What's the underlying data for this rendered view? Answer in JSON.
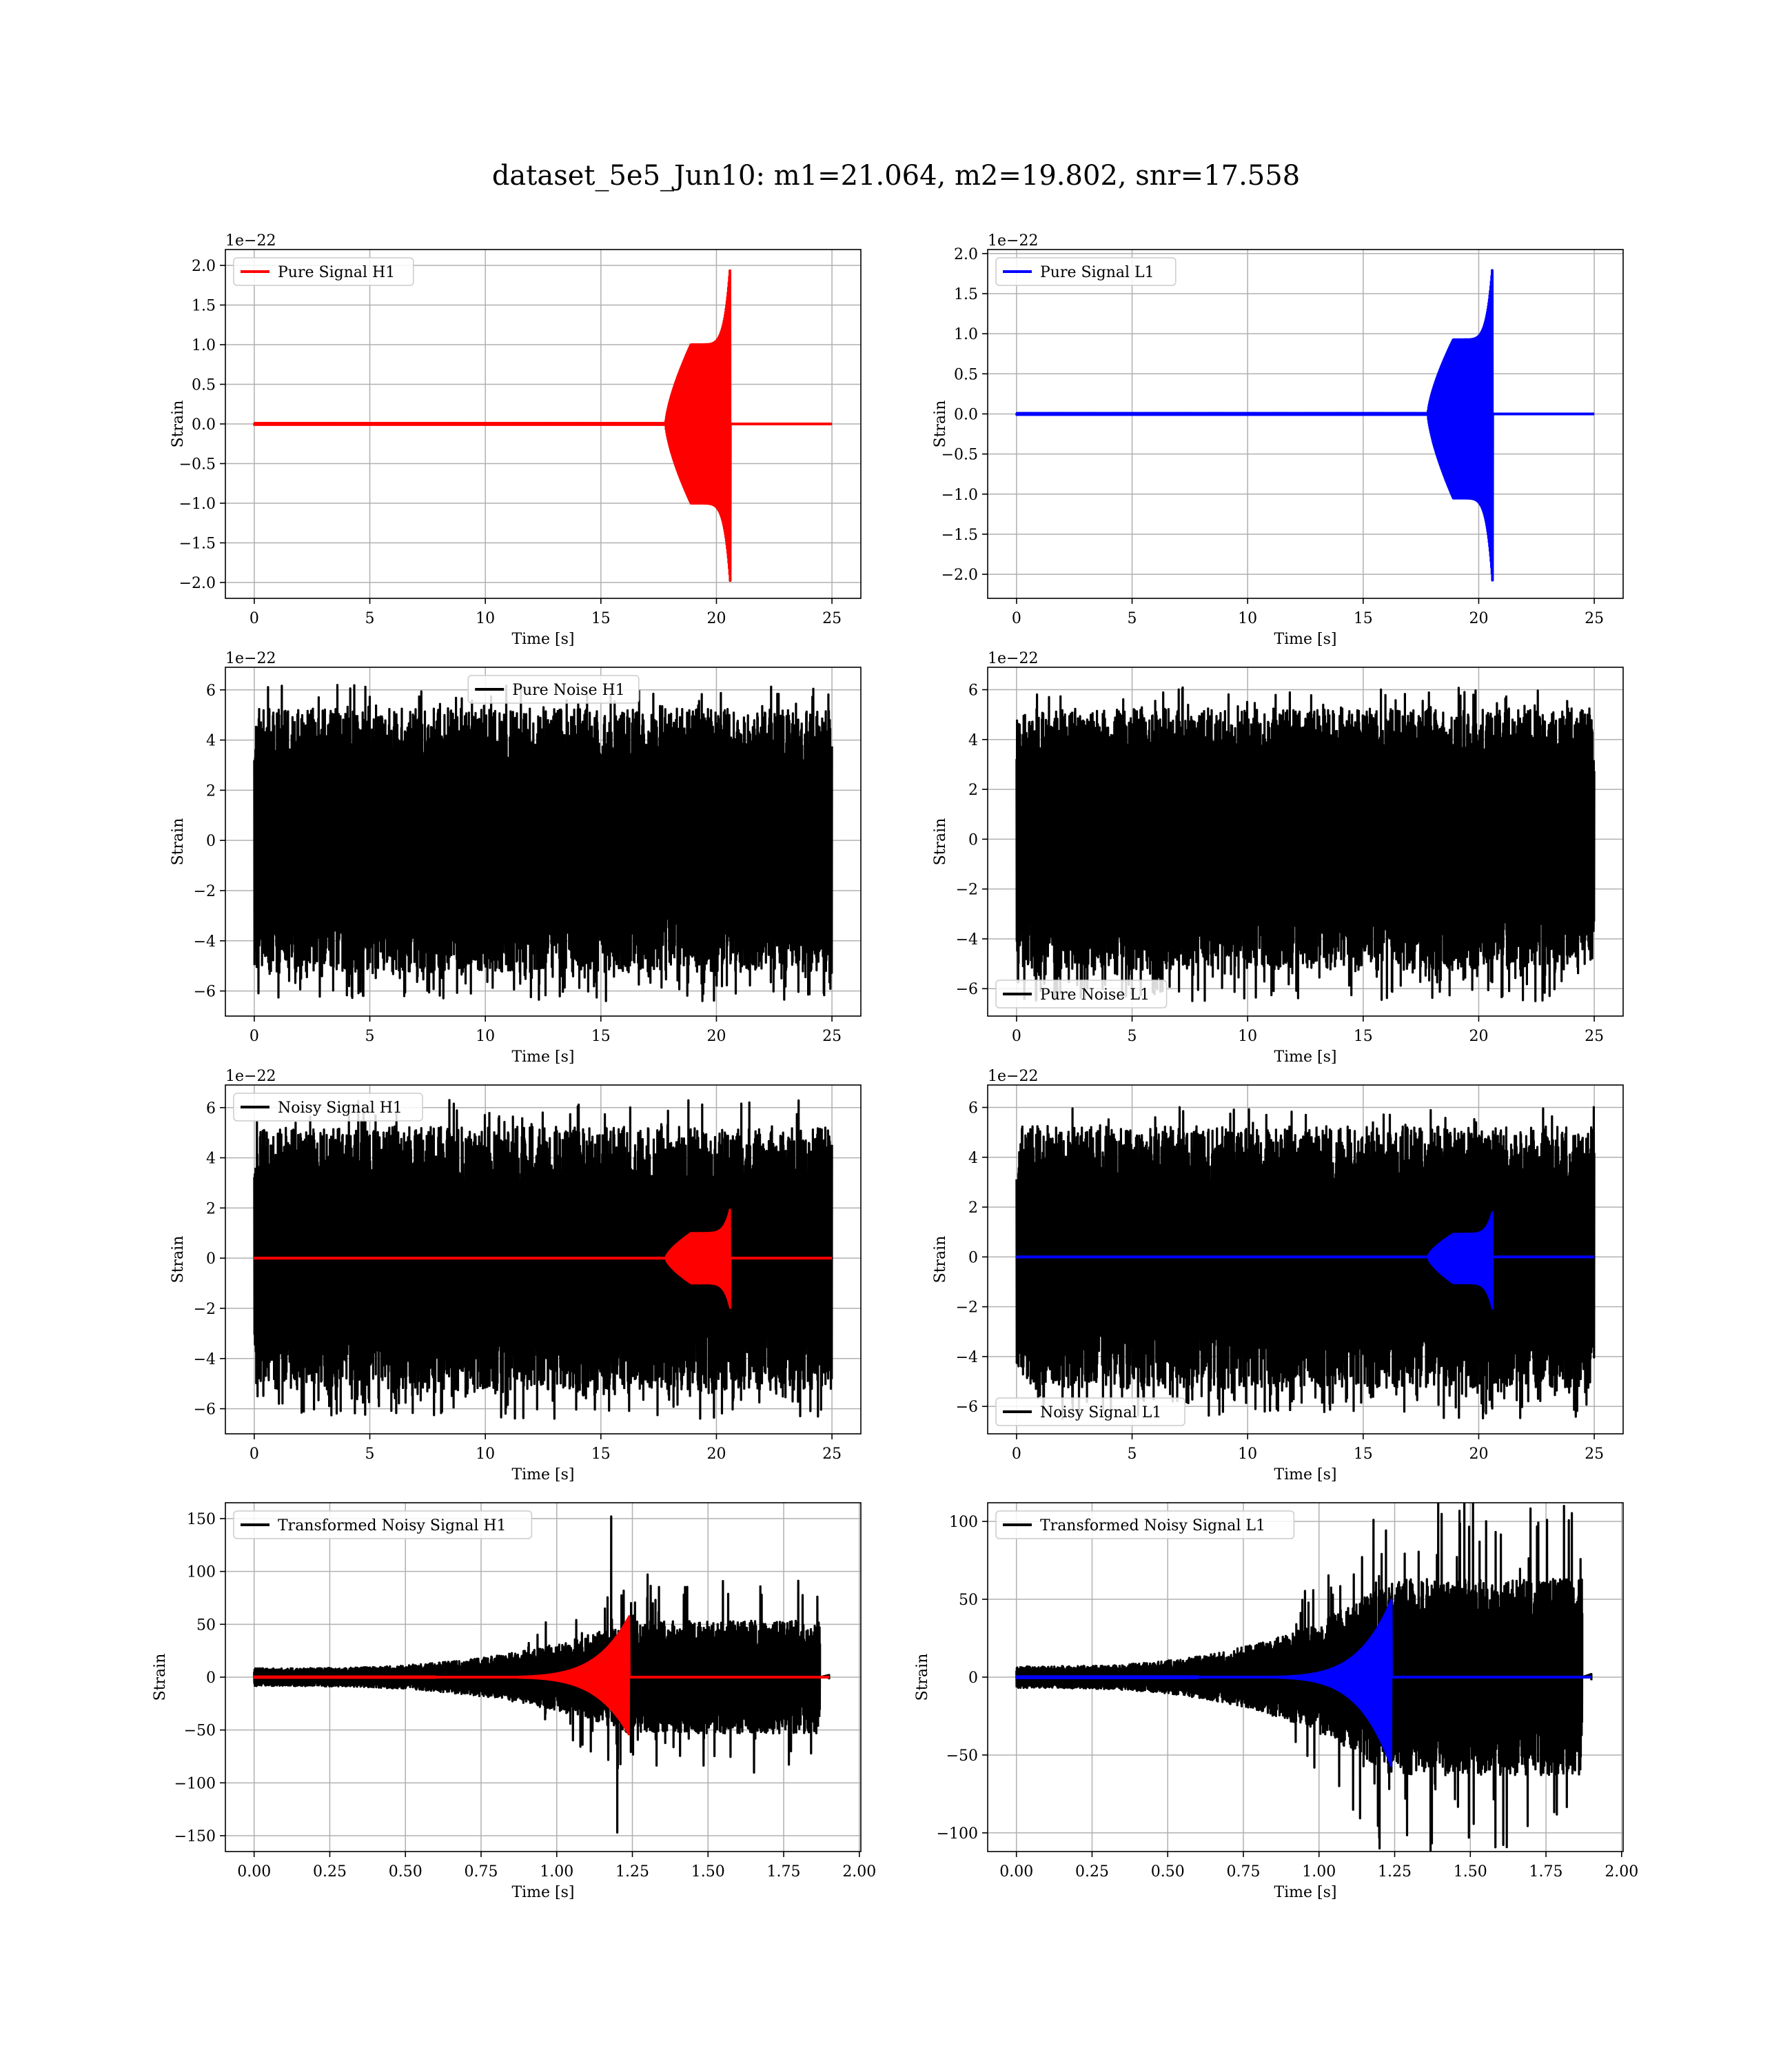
{
  "figure": {
    "suptitle": "dataset_5e5_Jun10: m1=21.064, m2=19.802, snr=17.558"
  },
  "colors": {
    "h1": "#ff0000",
    "l1": "#0000ff",
    "noise": "#000000",
    "grid": "#b0b0b0"
  },
  "chart_data": [
    {
      "type": "line",
      "title": "",
      "xlabel": "Time [s]",
      "ylabel": "Strain",
      "offset_text": "1e−22",
      "xlim": [
        -1.25,
        26.25
      ],
      "ylim": [
        -2.2,
        2.2
      ],
      "xticks": [
        0,
        5,
        10,
        15,
        20,
        25
      ],
      "xtick_labels": [
        "0",
        "5",
        "10",
        "15",
        "20",
        "25"
      ],
      "yticks": [
        -2.0,
        -1.5,
        -1.0,
        -0.5,
        0.0,
        0.5,
        1.0,
        1.5,
        2.0
      ],
      "ytick_labels": [
        "−2.0",
        "−1.5",
        "−1.0",
        "−0.5",
        "0.0",
        "0.5",
        "1.0",
        "1.5",
        "2.0"
      ],
      "legend": {
        "position": "upper left",
        "entries": [
          {
            "label": "Pure Signal H1",
            "color": "#ff0000"
          }
        ]
      },
      "series": [
        {
          "name": "Pure Signal H1",
          "color": "#ff0000",
          "kind": "chirp",
          "x_range": [
            0,
            25
          ],
          "t_merge": 20.6,
          "peak": 2.0,
          "trough": -2.0,
          "shoulder": 0.5,
          "onset": 17.8
        }
      ]
    },
    {
      "type": "line",
      "title": "",
      "xlabel": "Time [s]",
      "ylabel": "Strain",
      "offset_text": "1e−22",
      "xlim": [
        -1.25,
        26.25
      ],
      "ylim": [
        -2.3,
        2.05
      ],
      "xticks": [
        0,
        5,
        10,
        15,
        20,
        25
      ],
      "xtick_labels": [
        "0",
        "5",
        "10",
        "15",
        "20",
        "25"
      ],
      "yticks": [
        -2.0,
        -1.5,
        -1.0,
        -0.5,
        0.0,
        0.5,
        1.0,
        1.5,
        2.0
      ],
      "ytick_labels": [
        "−2.0",
        "−1.5",
        "−1.0",
        "−0.5",
        "0.0",
        "0.5",
        "1.0",
        "1.5",
        "2.0"
      ],
      "legend": {
        "position": "upper left",
        "entries": [
          {
            "label": "Pure Signal L1",
            "color": "#0000ff"
          }
        ]
      },
      "series": [
        {
          "name": "Pure Signal L1",
          "color": "#0000ff",
          "kind": "chirp",
          "x_range": [
            0,
            25
          ],
          "t_merge": 20.6,
          "peak": 1.85,
          "trough": -2.1,
          "shoulder": 0.5,
          "onset": 17.8
        }
      ]
    },
    {
      "type": "line",
      "title": "",
      "xlabel": "Time [s]",
      "ylabel": "Strain",
      "offset_text": "1e−22",
      "xlim": [
        -1.25,
        26.25
      ],
      "ylim": [
        -7.0,
        6.9
      ],
      "xticks": [
        0,
        5,
        10,
        15,
        20,
        25
      ],
      "xtick_labels": [
        "0",
        "5",
        "10",
        "15",
        "20",
        "25"
      ],
      "yticks": [
        -6,
        -4,
        -2,
        0,
        2,
        4,
        6
      ],
      "ytick_labels": [
        "−6",
        "−4",
        "−2",
        "0",
        "2",
        "4",
        "6"
      ],
      "legend": {
        "position": "upper center",
        "entries": [
          {
            "label": "Pure Noise H1",
            "color": "#000000"
          }
        ]
      },
      "series": [
        {
          "name": "Pure Noise H1",
          "color": "#000000",
          "kind": "noise",
          "x_range": [
            0,
            25
          ],
          "core": 3.0,
          "spike": 6.2,
          "spike_min": -6.4,
          "seed": 11
        }
      ]
    },
    {
      "type": "line",
      "title": "",
      "xlabel": "Time [s]",
      "ylabel": "Strain",
      "offset_text": "1e−22",
      "xlim": [
        -1.25,
        26.25
      ],
      "ylim": [
        -7.1,
        6.9
      ],
      "xticks": [
        0,
        5,
        10,
        15,
        20,
        25
      ],
      "xtick_labels": [
        "0",
        "5",
        "10",
        "15",
        "20",
        "25"
      ],
      "yticks": [
        -6,
        -4,
        -2,
        0,
        2,
        4,
        6
      ],
      "ytick_labels": [
        "−6",
        "−4",
        "−2",
        "0",
        "2",
        "4",
        "6"
      ],
      "legend": {
        "position": "lower left",
        "entries": [
          {
            "label": "Pure Noise L1",
            "color": "#000000"
          }
        ]
      },
      "series": [
        {
          "name": "Pure Noise L1",
          "color": "#000000",
          "kind": "noise",
          "x_range": [
            0,
            25
          ],
          "core": 3.0,
          "spike": 6.1,
          "spike_min": -6.5,
          "seed": 23
        }
      ]
    },
    {
      "type": "line",
      "title": "",
      "xlabel": "Time [s]",
      "ylabel": "Strain",
      "offset_text": "1e−22",
      "xlim": [
        -1.25,
        26.25
      ],
      "ylim": [
        -7.0,
        6.9
      ],
      "xticks": [
        0,
        5,
        10,
        15,
        20,
        25
      ],
      "xtick_labels": [
        "0",
        "5",
        "10",
        "15",
        "20",
        "25"
      ],
      "yticks": [
        -6,
        -4,
        -2,
        0,
        2,
        4,
        6
      ],
      "ytick_labels": [
        "−6",
        "−4",
        "−2",
        "0",
        "2",
        "4",
        "6"
      ],
      "legend": {
        "position": "upper left",
        "entries": [
          {
            "label": "Noisy Signal H1",
            "color": "#000000"
          }
        ]
      },
      "series": [
        {
          "name": "Noisy Signal H1",
          "color": "#000000",
          "kind": "noise",
          "x_range": [
            0,
            25
          ],
          "core": 3.0,
          "spike": 6.3,
          "spike_min": -6.4,
          "seed": 37
        },
        {
          "name": "",
          "color": "#ff0000",
          "kind": "chirp",
          "x_range": [
            0,
            25
          ],
          "t_merge": 20.6,
          "peak": 2.0,
          "trough": -2.0,
          "shoulder": 0.5,
          "onset": 17.8
        }
      ]
    },
    {
      "type": "line",
      "title": "",
      "xlabel": "Time [s]",
      "ylabel": "Strain",
      "offset_text": "1e−22",
      "xlim": [
        -1.25,
        26.25
      ],
      "ylim": [
        -7.1,
        6.9
      ],
      "xticks": [
        0,
        5,
        10,
        15,
        20,
        25
      ],
      "xtick_labels": [
        "0",
        "5",
        "10",
        "15",
        "20",
        "25"
      ],
      "yticks": [
        -6,
        -4,
        -2,
        0,
        2,
        4,
        6
      ],
      "ytick_labels": [
        "−6",
        "−4",
        "−2",
        "0",
        "2",
        "4",
        "6"
      ],
      "legend": {
        "position": "lower left",
        "entries": [
          {
            "label": "Noisy Signal L1",
            "color": "#000000"
          }
        ]
      },
      "series": [
        {
          "name": "Noisy Signal L1",
          "color": "#000000",
          "kind": "noise",
          "x_range": [
            0,
            25
          ],
          "core": 3.0,
          "spike": 6.1,
          "spike_min": -6.5,
          "seed": 53
        },
        {
          "name": "",
          "color": "#0000ff",
          "kind": "chirp",
          "x_range": [
            0,
            25
          ],
          "t_merge": 20.6,
          "peak": 1.85,
          "trough": -2.1,
          "shoulder": 0.5,
          "onset": 17.8
        }
      ]
    },
    {
      "type": "line",
      "title": "",
      "xlabel": "Time [s]",
      "ylabel": "Strain",
      "offset_text": "",
      "xlim": [
        -0.095,
        2.005
      ],
      "ylim": [
        -165,
        165
      ],
      "xticks": [
        0.0,
        0.25,
        0.5,
        0.75,
        1.0,
        1.25,
        1.5,
        1.75,
        2.0
      ],
      "xtick_labels": [
        "0.00",
        "0.25",
        "0.50",
        "0.75",
        "1.00",
        "1.25",
        "1.50",
        "1.75",
        "2.00"
      ],
      "yticks": [
        -150,
        -100,
        -50,
        0,
        50,
        100,
        150
      ],
      "ytick_labels": [
        "−150",
        "−100",
        "−50",
        "0",
        "50",
        "100",
        "150"
      ],
      "legend": {
        "position": "upper left",
        "entries": [
          {
            "label": "Transformed Noisy Signal H1",
            "color": "#000000"
          }
        ]
      },
      "series": [
        {
          "name": "Transformed Noisy Signal H1",
          "color": "#000000",
          "kind": "tnoise",
          "x_range": [
            0,
            1.9
          ],
          "t_merge": 1.24,
          "t_end": 1.87,
          "base": 6,
          "late": 38,
          "spike_max": 152,
          "spike_min": -147,
          "seed": 71
        },
        {
          "name": "",
          "color": "#ff0000",
          "kind": "tchirp",
          "x_range": [
            0,
            1.9
          ],
          "t_merge": 1.24,
          "peak": 58,
          "trough": -55,
          "onset": 0.6
        }
      ]
    },
    {
      "type": "line",
      "title": "",
      "xlabel": "Time [s]",
      "ylabel": "Strain",
      "offset_text": "",
      "xlim": [
        -0.095,
        2.005
      ],
      "ylim": [
        -112,
        112
      ],
      "xticks": [
        0.0,
        0.25,
        0.5,
        0.75,
        1.0,
        1.25,
        1.5,
        1.75,
        2.0
      ],
      "xtick_labels": [
        "0.00",
        "0.25",
        "0.50",
        "0.75",
        "1.00",
        "1.25",
        "1.50",
        "1.75",
        "2.00"
      ],
      "yticks": [
        -100,
        -50,
        0,
        50,
        100
      ],
      "ytick_labels": [
        "−100",
        "−50",
        "0",
        "50",
        "100"
      ],
      "legend": {
        "position": "upper left",
        "entries": [
          {
            "label": "Transformed Noisy Signal L1",
            "color": "#000000"
          }
        ]
      },
      "series": [
        {
          "name": "Transformed Noisy Signal L1",
          "color": "#000000",
          "kind": "tnoise",
          "x_range": [
            0,
            1.9
          ],
          "t_merge": 1.24,
          "t_end": 1.87,
          "base": 5,
          "late": 45,
          "spike_max": 101,
          "spike_min": -110,
          "seed": 89
        },
        {
          "name": "",
          "color": "#0000ff",
          "kind": "tchirp",
          "x_range": [
            0,
            1.9
          ],
          "t_merge": 1.24,
          "peak": 50,
          "trough": -58,
          "onset": 0.6
        }
      ]
    }
  ]
}
